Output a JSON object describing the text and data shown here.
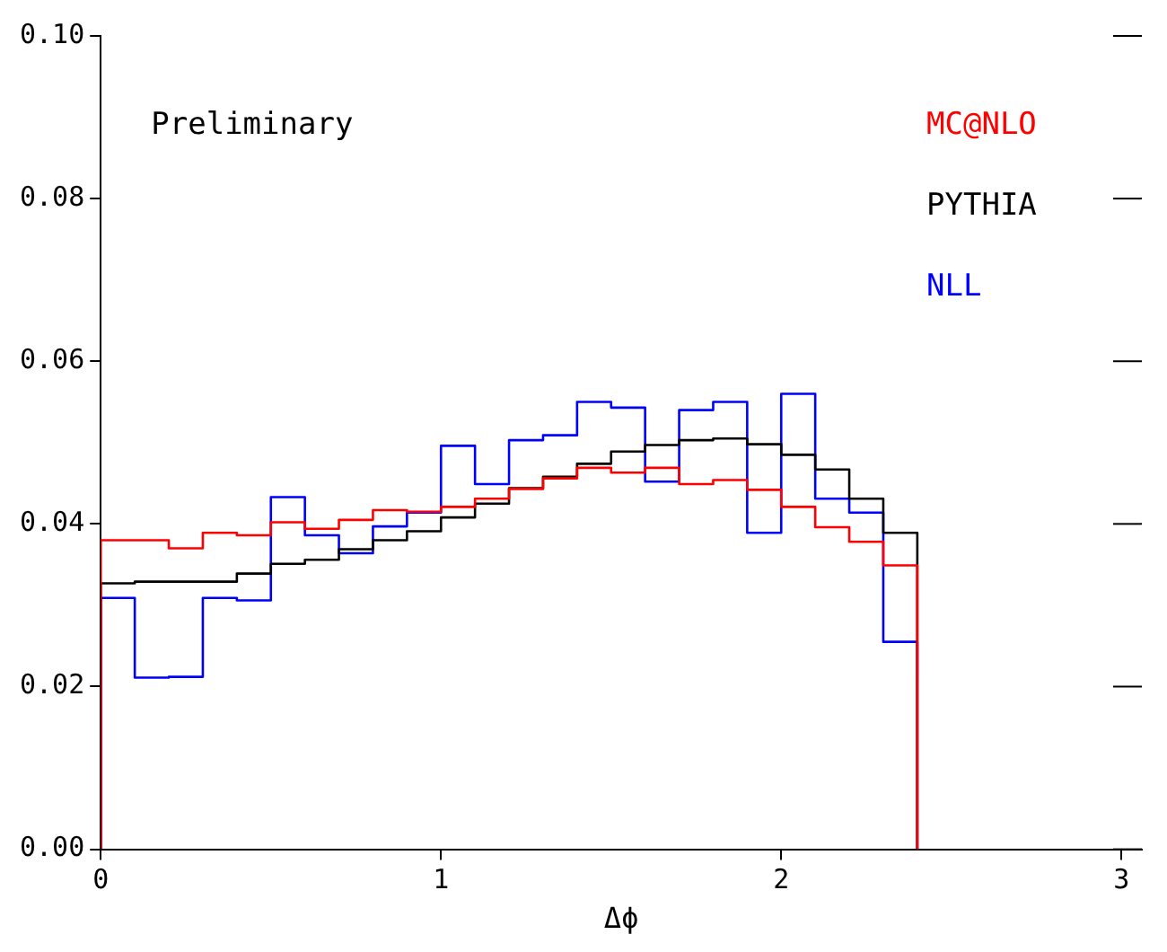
{
  "chart_data": {
    "type": "histogram",
    "xlabel": "Δϕ",
    "annotations": [
      "Preliminary"
    ],
    "bins": [
      0,
      0.1,
      0.2,
      0.3,
      0.4,
      0.5,
      0.6,
      0.7,
      0.8,
      0.9,
      1.0,
      1.1,
      1.2,
      1.3,
      1.4,
      1.5,
      1.6,
      1.7,
      1.8,
      1.9,
      2.0,
      2.1,
      2.2,
      2.3,
      2.4
    ],
    "series": [
      {
        "name": "MC@NLO",
        "color": "#ff0000",
        "values": [
          0.038,
          0.038,
          0.037,
          0.0389,
          0.0386,
          0.0402,
          0.0394,
          0.0405,
          0.0417,
          0.0415,
          0.0421,
          0.0431,
          0.0443,
          0.0456,
          0.0469,
          0.0463,
          0.0469,
          0.0449,
          0.0454,
          0.0442,
          0.0421,
          0.0396,
          0.0378,
          0.0349
        ]
      },
      {
        "name": "PYTHIA",
        "color": "#000000",
        "values": [
          0.0327,
          0.0329,
          0.0329,
          0.0329,
          0.0339,
          0.0351,
          0.0356,
          0.0369,
          0.038,
          0.0391,
          0.0408,
          0.0425,
          0.0444,
          0.0458,
          0.0474,
          0.0489,
          0.0497,
          0.0503,
          0.0505,
          0.0498,
          0.0485,
          0.0467,
          0.0431,
          0.0389
        ]
      },
      {
        "name": "NLL",
        "color": "#0000ff",
        "values": [
          0.0309,
          0.0211,
          0.0212,
          0.0309,
          0.0306,
          0.0433,
          0.0386,
          0.0364,
          0.0397,
          0.0414,
          0.0496,
          0.0449,
          0.0503,
          0.0509,
          0.055,
          0.0543,
          0.0452,
          0.054,
          0.055,
          0.0389,
          0.056,
          0.0431,
          0.0414,
          0.0255
        ]
      }
    ],
    "xlim": [
      0,
      3.06
    ],
    "xticks": [
      0,
      1,
      2,
      3
    ],
    "ylim": [
      0,
      0.1
    ],
    "yticks": [
      {
        "value": 0,
        "label": "0.00"
      },
      {
        "value": 0.02,
        "label": "0.02"
      },
      {
        "value": 0.04,
        "label": "0.04"
      },
      {
        "value": 0.06,
        "label": "0.06"
      },
      {
        "value": 0.08,
        "label": "0.08"
      },
      {
        "value": 0.1,
        "label": "0.10"
      }
    ],
    "legend": "top right",
    "grid": false
  }
}
